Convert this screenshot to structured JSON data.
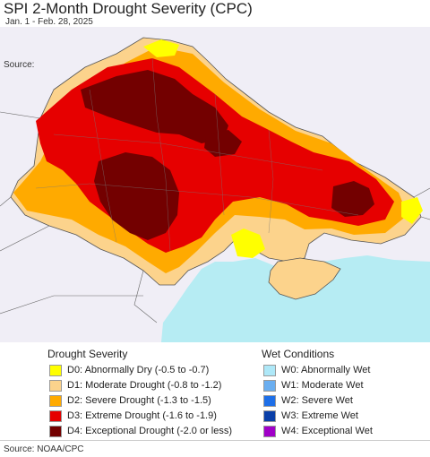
{
  "header": {
    "title": "SPI 2-Month Drought Severity (CPC)",
    "subtitle": "Jan. 1 - Feb. 28, 2025",
    "source_top": "Source:"
  },
  "map": {
    "colors": {
      "background_land": "#f0eef6",
      "sea": "#b6ecf3",
      "D0": "#ffff00",
      "D1": "#fcd38c",
      "D2": "#ffaa00",
      "D3": "#e60000",
      "D4": "#730000"
    }
  },
  "legend": {
    "drought_heading": "Drought Severity",
    "wet_heading": "Wet Conditions",
    "drought_items": [
      {
        "label": "D0: Abnormally Dry (-0.5 to -0.7)",
        "color": "#ffff00"
      },
      {
        "label": "D1: Moderate Drought (-0.8 to -1.2)",
        "color": "#fcd38c"
      },
      {
        "label": "D2: Severe Drought (-1.3 to -1.5)",
        "color": "#ffaa00"
      },
      {
        "label": "D3: Extreme Drought (-1.6 to -1.9)",
        "color": "#e60000"
      },
      {
        "label": "D4: Exceptional Drought (-2.0 or less)",
        "color": "#730000"
      }
    ],
    "wet_items": [
      {
        "label": "W0: Abnormally Wet",
        "color": "#aee8f8"
      },
      {
        "label": "W1: Moderate Wet",
        "color": "#6aaef0"
      },
      {
        "label": "W2: Severe Wet",
        "color": "#1e6fe8"
      },
      {
        "label": "W3: Extreme Wet",
        "color": "#0a3fa8"
      },
      {
        "label": "W4: Exceptional Wet",
        "color": "#a000c8"
      }
    ]
  },
  "footer": {
    "source": "Source: NOAA/CPC"
  }
}
